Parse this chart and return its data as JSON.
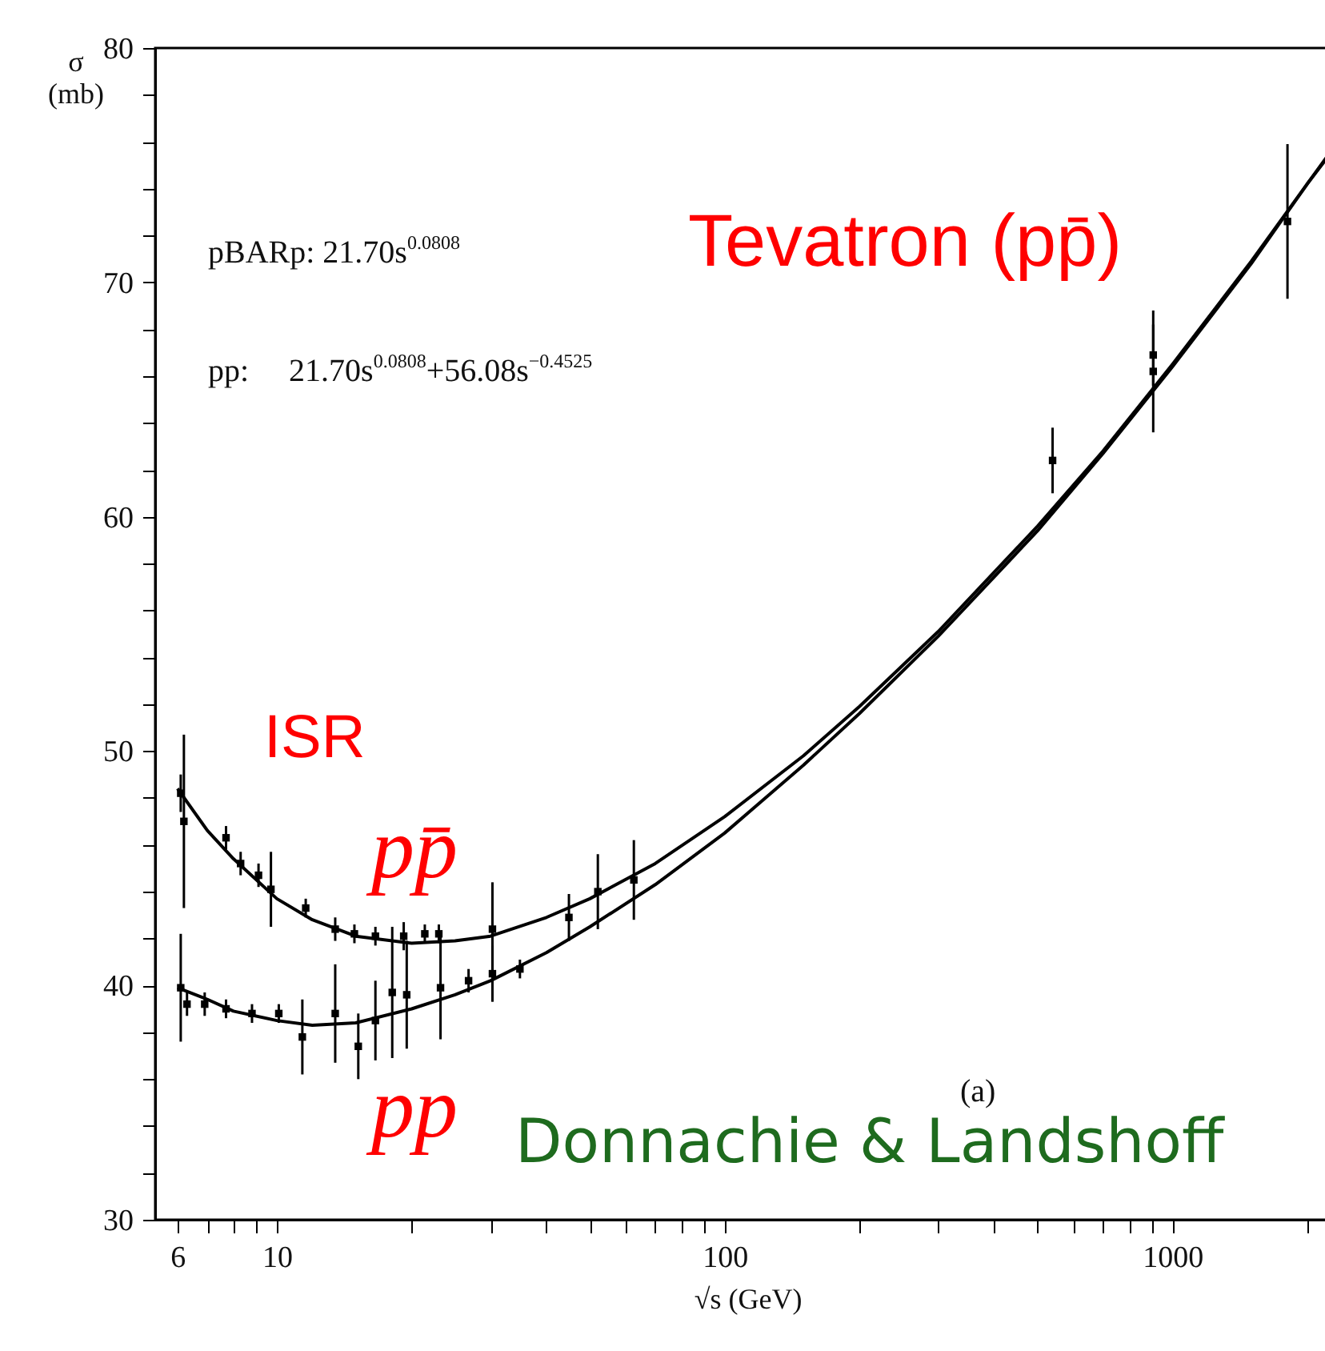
{
  "chart_data": {
    "type": "line",
    "xlabel": "√s (GeV)",
    "ylabel": "σ (mb)",
    "log": "x",
    "grid": false,
    "xlim": [
      5.35,
      2360
    ],
    "ylim": [
      30,
      80
    ],
    "xticks": [
      6,
      {
        "value": 7,
        "label": null
      },
      {
        "value": 8,
        "label": null
      },
      {
        "value": 9,
        "label": null
      },
      10,
      {
        "value": 20,
        "label": null
      },
      {
        "value": 30,
        "label": null
      },
      {
        "value": 40,
        "label": null
      },
      {
        "value": 50,
        "label": null
      },
      {
        "value": 60,
        "label": null
      },
      {
        "value": 70,
        "label": null
      },
      {
        "value": 80,
        "label": null
      },
      {
        "value": 90,
        "label": null
      },
      100,
      {
        "value": 200,
        "label": null
      },
      {
        "value": 300,
        "label": null
      },
      {
        "value": 400,
        "label": null
      },
      {
        "value": 500,
        "label": null
      },
      {
        "value": 600,
        "label": null
      },
      {
        "value": 700,
        "label": null
      },
      {
        "value": 800,
        "label": null
      },
      {
        "value": 900,
        "label": null
      },
      1000,
      {
        "value": 2000,
        "label": null
      }
    ],
    "yticks": [
      30,
      {
        "value": 32,
        "label": null
      },
      {
        "value": 34,
        "label": null
      },
      {
        "value": 36,
        "label": null
      },
      {
        "value": 38,
        "label": null
      },
      40,
      {
        "value": 42,
        "label": null
      },
      {
        "value": 44,
        "label": null
      },
      {
        "value": 46,
        "label": null
      },
      {
        "value": 48,
        "label": null
      },
      50,
      {
        "value": 52,
        "label": null
      },
      {
        "value": 54,
        "label": null
      },
      {
        "value": 56,
        "label": null
      },
      {
        "value": 58,
        "label": null
      },
      60,
      {
        "value": 62,
        "label": null
      },
      {
        "value": 64,
        "label": null
      },
      {
        "value": 66,
        "label": null
      },
      {
        "value": 68,
        "label": null
      },
      70,
      {
        "value": 72,
        "label": null
      },
      {
        "value": 74,
        "label": null
      },
      {
        "value": 76,
        "label": null
      },
      {
        "value": 78,
        "label": null
      },
      80
    ],
    "series": [
      {
        "color": "#000000",
        "x": [
          6,
          7,
          8,
          10,
          12,
          15,
          20,
          25,
          30,
          40,
          50,
          70,
          100,
          150,
          200,
          300,
          500,
          700,
          1000,
          1500,
          2000,
          2360
        ],
        "values": [
          48.4,
          46.6,
          45.4,
          43.7,
          42.8,
          42.1,
          41.8,
          41.9,
          42.1,
          42.9,
          43.7,
          45.2,
          47.2,
          49.8,
          51.9,
          55.1,
          59.6,
          62.8,
          66.5,
          70.9,
          74.2,
          76.1
        ]
      },
      {
        "color": "#000000",
        "x": [
          6,
          7,
          8,
          10,
          12,
          15,
          20,
          25,
          30,
          40,
          50,
          70,
          100,
          150,
          200,
          300,
          500,
          700,
          1000,
          1500,
          2000,
          2360
        ],
        "values": [
          39.9,
          39.4,
          38.9,
          38.5,
          38.3,
          38.4,
          39.0,
          39.6,
          40.2,
          41.4,
          42.5,
          44.3,
          46.5,
          49.4,
          51.6,
          54.9,
          59.4,
          62.7,
          66.4,
          70.8,
          74.2,
          76.0
        ]
      },
      {
        "type": "scatter",
        "marker": "square",
        "color": "#000000",
        "x": [
          6.1,
          6.2,
          7.7,
          8.3,
          9.1,
          9.7,
          11.6,
          13.5,
          14.9,
          16.6,
          19.2,
          21.4,
          23.0,
          30.3,
          44.9,
          52.1,
          62.7,
          540,
          906,
          906,
          1807
        ],
        "values": [
          48.2,
          47.0,
          46.3,
          45.2,
          44.7,
          44.1,
          43.3,
          42.4,
          42.2,
          42.1,
          42.1,
          42.2,
          42.2,
          42.4,
          42.9,
          44.0,
          44.5,
          62.4,
          66.9,
          66.2,
          72.6
        ],
        "errors": [
          0.8,
          3.7,
          0.5,
          0.5,
          0.5,
          1.6,
          0.4,
          0.5,
          0.4,
          0.4,
          0.6,
          0.4,
          0.4,
          2.0,
          1.0,
          1.6,
          1.7,
          1.4,
          1.3,
          2.6,
          3.3
        ]
      },
      {
        "type": "scatter",
        "marker": "square",
        "color": "#000000",
        "x": [
          6.1,
          6.3,
          6.9,
          7.7,
          8.8,
          10.1,
          11.4,
          13.5,
          15.2,
          16.6,
          18.1,
          19.5,
          23.2,
          26.8,
          30.3,
          34.9
        ],
        "values": [
          39.9,
          39.2,
          39.2,
          39.0,
          38.8,
          38.8,
          37.8,
          38.8,
          37.4,
          38.5,
          39.7,
          39.6,
          39.9,
          40.2,
          40.5,
          40.7
        ],
        "errors": [
          2.3,
          0.5,
          0.5,
          0.4,
          0.4,
          0.4,
          1.6,
          2.1,
          1.4,
          1.7,
          2.8,
          2.3,
          2.2,
          0.5,
          1.2,
          0.4
        ]
      }
    ],
    "annotations": [
      "pBARp: 21.70s$^{0.0808}$",
      "pp:     21.70s$^{0.0808}$+56.08s$^{−0.4525}$",
      "Tevatron (pp̄)",
      "ISR",
      "pp̄",
      "pp",
      "(a)",
      "Donnachie & Landshoff"
    ]
  }
}
